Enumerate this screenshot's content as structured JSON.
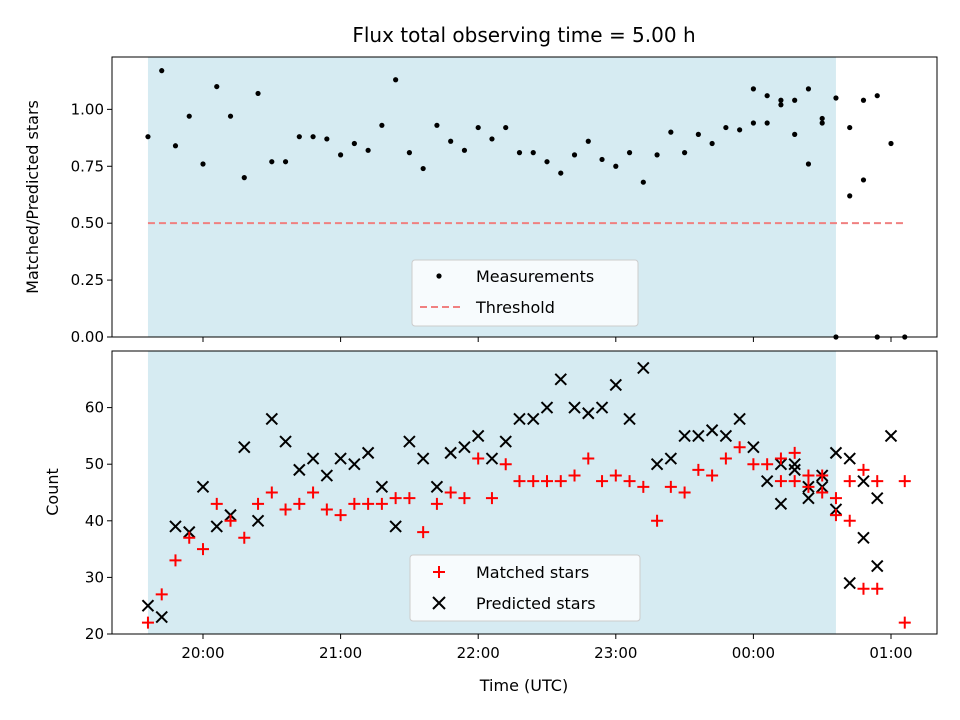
{
  "chart_data": {
    "title": "Flux total observing time = 5.00 h",
    "xlabel": "Time (UTC)",
    "x_ticks": [
      "20:00",
      "21:00",
      "22:00",
      "23:00",
      "00:00",
      "01:00"
    ],
    "observing_window": {
      "start": "19:36",
      "end": "00:36",
      "color": "#add8e6"
    },
    "top": {
      "type": "scatter",
      "ylabel": "Matched/Predicted stars",
      "ylim": [
        0.0,
        1.23
      ],
      "y_ticks": [
        "0.00",
        "0.25",
        "0.50",
        "0.75",
        "1.00"
      ],
      "threshold": {
        "name": "Threshold",
        "value": 0.5,
        "x_start": "19:36",
        "x_end": "01:06",
        "color": "#f08080"
      },
      "series": [
        {
          "name": "Measurements",
          "color": "#000000",
          "x": [
            "19:36",
            "19:42",
            "19:48",
            "19:54",
            "20:00",
            "20:06",
            "20:12",
            "20:18",
            "20:24",
            "20:30",
            "20:36",
            "20:42",
            "20:48",
            "20:54",
            "21:00",
            "21:06",
            "21:12",
            "21:18",
            "21:24",
            "21:30",
            "21:36",
            "21:42",
            "21:48",
            "21:54",
            "22:00",
            "22:06",
            "22:12",
            "22:18",
            "22:24",
            "22:30",
            "22:36",
            "22:42",
            "22:48",
            "22:54",
            "23:00",
            "23:06",
            "23:12",
            "23:18",
            "23:24",
            "23:30",
            "23:36",
            "23:42",
            "23:48",
            "23:54",
            "00:00",
            "00:06",
            "00:12",
            "00:18",
            "00:24",
            "00:30",
            "00:36",
            "00:42",
            "00:48",
            "00:54",
            "01:00"
          ],
          "y": [
            0.88,
            1.17,
            0.84,
            0.97,
            0.76,
            1.1,
            0.97,
            0.7,
            1.07,
            0.77,
            0.77,
            0.88,
            0.88,
            0.87,
            0.8,
            0.85,
            0.82,
            0.93,
            1.13,
            0.81,
            0.74,
            0.93,
            0.86,
            0.82,
            0.92,
            0.87,
            0.92,
            0.81,
            0.81,
            0.77,
            0.72,
            0.8,
            0.86,
            0.78,
            0.75,
            0.81,
            0.68,
            0.8,
            0.9,
            0.81,
            0.89,
            0.85,
            0.92,
            0.91,
            0.94,
            1.06,
            1.02,
            1.04,
            1.09,
            0.94,
            1.05,
            0.92,
            1.04,
            1.06,
            0.85
          ]
        }
      ],
      "extra_points": {
        "x": [
          "00:00",
          "00:06",
          "00:12",
          "00:18",
          "00:24",
          "00:30",
          "00:36",
          "00:42",
          "00:48",
          "00:54",
          "01:06"
        ],
        "y": [
          1.09,
          0.94,
          1.04,
          0.89,
          0.76,
          0.96,
          0.0,
          0.62,
          0.69,
          0.0,
          0.0
        ]
      }
    },
    "bottom": {
      "type": "scatter",
      "ylabel": "Count",
      "ylim": [
        20,
        70
      ],
      "y_ticks": [
        "20",
        "30",
        "40",
        "50",
        "60"
      ],
      "series": [
        {
          "name": "Matched stars",
          "marker": "+",
          "color": "#ff0000",
          "x": [
            "19:36",
            "19:42",
            "19:48",
            "19:54",
            "20:00",
            "20:06",
            "20:12",
            "20:18",
            "20:24",
            "20:30",
            "20:36",
            "20:42",
            "20:48",
            "20:54",
            "21:00",
            "21:06",
            "21:12",
            "21:18",
            "21:24",
            "21:30",
            "21:36",
            "21:42",
            "21:48",
            "21:54",
            "22:00",
            "22:06",
            "22:12",
            "22:18",
            "22:24",
            "22:30",
            "22:36",
            "22:42",
            "22:48",
            "22:54",
            "23:00",
            "23:06",
            "23:12",
            "23:18",
            "23:24",
            "23:30",
            "23:36",
            "23:42",
            "23:48",
            "23:54",
            "00:00",
            "00:06",
            "00:12",
            "00:18",
            "00:24",
            "00:30",
            "00:36",
            "00:42",
            "00:48",
            "00:54",
            "01:06"
          ],
          "y": [
            22,
            27,
            33,
            37,
            35,
            43,
            40,
            37,
            43,
            45,
            42,
            43,
            45,
            42,
            41,
            43,
            43,
            43,
            44,
            44,
            38,
            43,
            45,
            44,
            51,
            44,
            50,
            47,
            47,
            47,
            47,
            48,
            51,
            47,
            48,
            47,
            46,
            40,
            46,
            45,
            49,
            48,
            51,
            53,
            50,
            50,
            51,
            52,
            48,
            45,
            44,
            47,
            49,
            47,
            47
          ]
        }
      ],
      "series_b": {
        "name": "Predicted stars",
        "marker": "x",
        "color": "#000000",
        "x": [
          "19:36",
          "19:42",
          "19:48",
          "19:54",
          "20:00",
          "20:06",
          "20:12",
          "20:18",
          "20:24",
          "20:30",
          "20:36",
          "20:42",
          "20:48",
          "20:54",
          "21:00",
          "21:06",
          "21:12",
          "21:18",
          "21:24",
          "21:30",
          "21:36",
          "21:42",
          "21:48",
          "21:54",
          "22:00",
          "22:06",
          "22:12",
          "22:18",
          "22:24",
          "22:30",
          "22:36",
          "22:42",
          "22:48",
          "22:54",
          "23:00",
          "23:06",
          "23:12",
          "23:18",
          "23:24",
          "23:30",
          "23:36",
          "23:42",
          "23:48",
          "23:54",
          "00:00",
          "00:06",
          "00:12",
          "00:18",
          "00:24",
          "00:30",
          "00:36",
          "00:42",
          "00:48",
          "00:54",
          "01:00"
        ],
        "y": [
          25,
          23,
          39,
          38,
          46,
          39,
          41,
          53,
          40,
          58,
          54,
          49,
          51,
          48,
          51,
          50,
          52,
          46,
          39,
          54,
          51,
          46,
          52,
          53,
          55,
          51,
          54,
          58,
          58,
          60,
          65,
          60,
          59,
          60,
          64,
          58,
          67,
          50,
          51,
          55,
          55,
          56,
          55,
          58,
          53,
          47,
          50,
          50,
          44,
          48,
          42,
          51,
          47,
          44,
          55
        ]
      },
      "tail_matched": {
        "x": [
          "00:12",
          "00:18",
          "00:24",
          "00:30",
          "00:36",
          "00:42",
          "00:48",
          "00:54",
          "01:06"
        ],
        "y": [
          47,
          47,
          46,
          48,
          41,
          40,
          28,
          28,
          22
        ]
      },
      "tail_predicted": {
        "x": [
          "00:12",
          "00:18",
          "00:24",
          "00:30",
          "00:36",
          "00:42",
          "00:48",
          "00:54"
        ],
        "y": [
          43,
          49,
          46,
          46,
          52,
          29,
          37,
          32
        ]
      }
    }
  }
}
